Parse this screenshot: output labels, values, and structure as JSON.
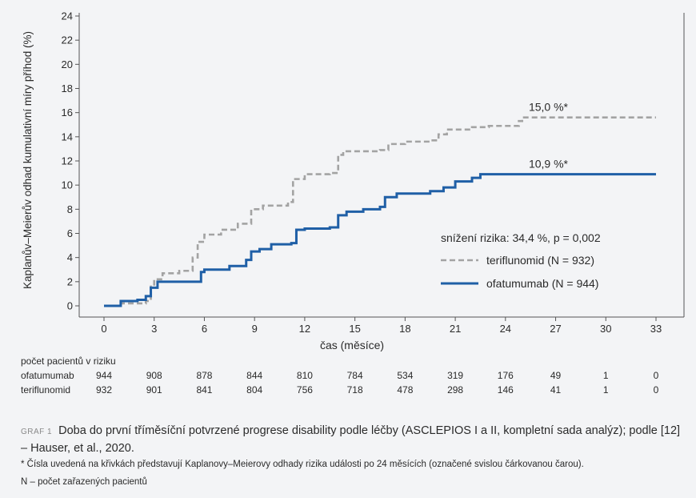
{
  "chart_data": {
    "type": "line",
    "ylabel": "Kaplanův–Meierův odhad kumulativní míry příhod (%)",
    "xlabel": "čas (měsíce)",
    "xlim": [
      0,
      33
    ],
    "ylim": [
      0,
      24
    ],
    "xticks": [
      0,
      3,
      6,
      9,
      12,
      15,
      18,
      21,
      24,
      27,
      30,
      33
    ],
    "yticks": [
      0,
      2,
      4,
      6,
      8,
      10,
      12,
      14,
      16,
      18,
      20,
      22,
      24
    ],
    "grid": false,
    "legend_position": "lower-right",
    "annotation": "snížení rizika: 34,4 %, p = 0,002",
    "series": [
      {
        "name": "teriflunomid (N = 932)",
        "color": "#a3a3a3",
        "dash": true,
        "end_label": "15,0 %*",
        "points": [
          [
            0,
            0
          ],
          [
            1,
            0.2
          ],
          [
            2.5,
            0.4
          ],
          [
            2.8,
            1.6
          ],
          [
            3,
            2.2
          ],
          [
            3.5,
            2.7
          ],
          [
            4.5,
            2.9
          ],
          [
            5.3,
            4.0
          ],
          [
            5.6,
            5.3
          ],
          [
            6,
            5.9
          ],
          [
            7,
            6.3
          ],
          [
            8,
            6.8
          ],
          [
            8.8,
            8.0
          ],
          [
            9.5,
            8.3
          ],
          [
            11,
            8.6
          ],
          [
            11.3,
            10.5
          ],
          [
            12,
            10.9
          ],
          [
            13.5,
            11.0
          ],
          [
            14,
            12.5
          ],
          [
            14.3,
            12.8
          ],
          [
            16.5,
            12.9
          ],
          [
            17,
            13.4
          ],
          [
            18,
            13.6
          ],
          [
            19.5,
            13.7
          ],
          [
            20,
            14.2
          ],
          [
            20.5,
            14.6
          ],
          [
            22,
            14.8
          ],
          [
            23,
            14.9
          ],
          [
            24,
            14.9
          ],
          [
            24.8,
            15.3
          ],
          [
            25,
            15.6
          ],
          [
            33,
            15.6
          ]
        ]
      },
      {
        "name": "ofatumumab (N = 944)",
        "color": "#1f5fa6",
        "dash": false,
        "end_label": "10,9 %*",
        "points": [
          [
            0,
            0
          ],
          [
            1,
            0.4
          ],
          [
            2,
            0.5
          ],
          [
            2.5,
            0.8
          ],
          [
            2.8,
            1.5
          ],
          [
            3.2,
            2.0
          ],
          [
            5.5,
            2.0
          ],
          [
            5.8,
            2.8
          ],
          [
            6,
            3.0
          ],
          [
            7.5,
            3.3
          ],
          [
            8.5,
            3.8
          ],
          [
            8.8,
            4.5
          ],
          [
            9.3,
            4.7
          ],
          [
            10,
            5.1
          ],
          [
            11.2,
            5.2
          ],
          [
            11.5,
            6.3
          ],
          [
            12,
            6.4
          ],
          [
            13.5,
            6.5
          ],
          [
            14,
            7.5
          ],
          [
            14.5,
            7.8
          ],
          [
            15.5,
            8.0
          ],
          [
            16.5,
            8.2
          ],
          [
            16.8,
            9.0
          ],
          [
            17.5,
            9.3
          ],
          [
            19.5,
            9.5
          ],
          [
            20.3,
            9.8
          ],
          [
            21,
            10.3
          ],
          [
            22,
            10.6
          ],
          [
            22.5,
            10.9
          ],
          [
            33,
            10.9
          ]
        ]
      }
    ]
  },
  "risk_table": {
    "title": "počet pacientů v riziku",
    "times": [
      0,
      3,
      6,
      9,
      12,
      15,
      18,
      21,
      24,
      27,
      30,
      33
    ],
    "rows": [
      {
        "label": "ofatumumab",
        "values": [
          "944",
          "908",
          "878",
          "844",
          "810",
          "784",
          "534",
          "319",
          "176",
          "49",
          "1",
          "0"
        ]
      },
      {
        "label": "teriflunomid",
        "values": [
          "932",
          "901",
          "841",
          "804",
          "756",
          "718",
          "478",
          "298",
          "146",
          "41",
          "1",
          "0"
        ]
      }
    ]
  },
  "caption": {
    "label": "GRAF 1",
    "text": "Doba do první tříměsíční potvrzené progrese disability podle léčby (ASCLEPIOS I a II, kompletní sada analýz); podle [12] – Hauser, et al., 2020.",
    "footnote1": "* Čísla uvedená na křivkách představují Kaplanovy–Meierovy odhady rizika události po 24 měsících (označené svislou čárkovanou čarou).",
    "footnote2": "N – počet zařazených pacientů"
  }
}
